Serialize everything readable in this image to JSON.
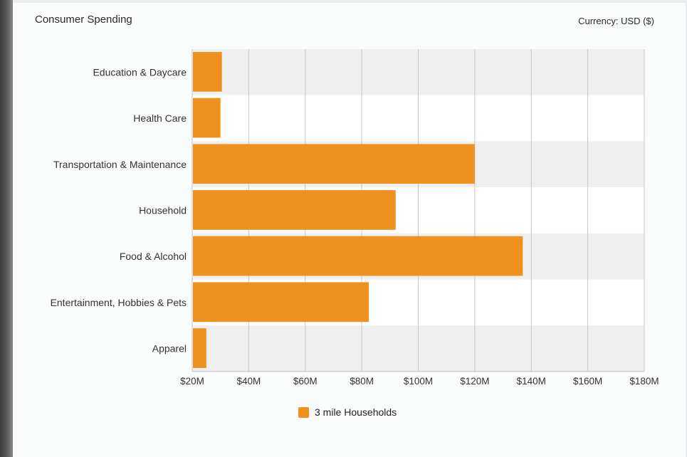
{
  "header": {
    "title": "Consumer Spending",
    "currency": "Currency: USD ($)"
  },
  "chart_data": {
    "type": "bar",
    "orientation": "horizontal",
    "title": "Consumer Spending",
    "categories": [
      "Education & Daycare",
      "Health Care",
      "Transportation & Maintenance",
      "Household",
      "Food & Alcohol",
      "Entertainment, Hobbies & Pets",
      "Apparel"
    ],
    "series": [
      {
        "name": "3 mile Households",
        "values": [
          30.5,
          30,
          120,
          92,
          137,
          82.5,
          25
        ],
        "color": "#f0911f"
      }
    ],
    "value_unit": "millions of USD",
    "xlim": [
      20,
      180
    ],
    "xticks": [
      20,
      40,
      60,
      80,
      100,
      120,
      140,
      160,
      180
    ],
    "xtick_labels": [
      "$20M",
      "$40M",
      "$60M",
      "$80M",
      "$100M",
      "$120M",
      "$140M",
      "$160M",
      "$180M"
    ],
    "grid": true,
    "legend_position": "bottom-center",
    "band_colors": [
      "#efefef",
      "#ffffff"
    ]
  }
}
